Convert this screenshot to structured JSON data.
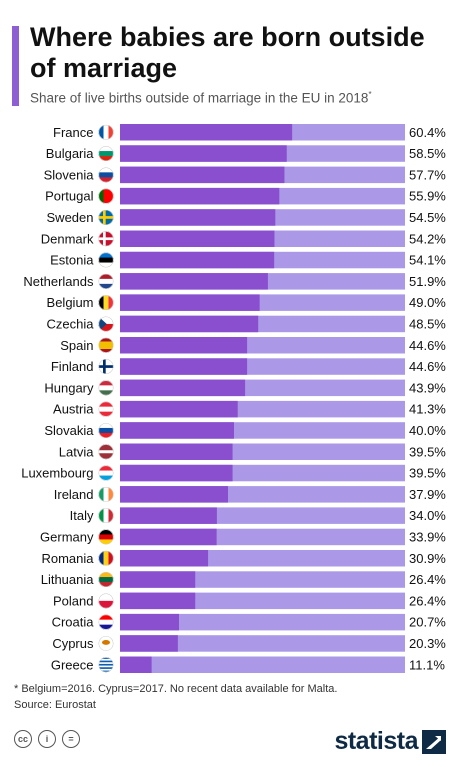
{
  "header": {
    "title": "Where babies are born outside of marriage",
    "subtitle": "Share of live births outside of marriage in the EU in 2018",
    "subtitle_mark": "*"
  },
  "colors": {
    "accent": "#8d5fd3",
    "bar_fill": "#8a4fcf",
    "bar_track": "#ab99e8",
    "brand": "#0f2a44"
  },
  "chart_data": {
    "type": "bar",
    "orientation": "horizontal",
    "xlim": [
      0,
      100
    ],
    "categories": [
      "France",
      "Bulgaria",
      "Slovenia",
      "Portugal",
      "Sweden",
      "Denmark",
      "Estonia",
      "Netherlands",
      "Belgium",
      "Czechia",
      "Spain",
      "Finland",
      "Hungary",
      "Austria",
      "Slovakia",
      "Latvia",
      "Luxembourg",
      "Ireland",
      "Italy",
      "Germany",
      "Romania",
      "Lithuania",
      "Poland",
      "Croatia",
      "Cyprus",
      "Greece"
    ],
    "values": [
      60.4,
      58.5,
      57.7,
      55.9,
      54.5,
      54.2,
      54.1,
      51.9,
      49.0,
      48.5,
      44.6,
      44.6,
      43.9,
      41.3,
      40.0,
      39.5,
      39.5,
      37.9,
      34.0,
      33.9,
      30.9,
      26.4,
      26.4,
      20.7,
      20.3,
      11.1
    ],
    "value_labels": [
      "60.4%",
      "58.5%",
      "57.7%",
      "55.9%",
      "54.5%",
      "54.2%",
      "54.1%",
      "51.9%",
      "49.0%",
      "48.5%",
      "44.6%",
      "44.6%",
      "43.9%",
      "41.3%",
      "40.0%",
      "39.5%",
      "39.5%",
      "37.9%",
      "34.0%",
      "33.9%",
      "30.9%",
      "26.4%",
      "26.4%",
      "20.7%",
      "20.3%",
      "11.1%"
    ],
    "flag_icons": [
      "france-flag-icon",
      "bulgaria-flag-icon",
      "slovenia-flag-icon",
      "portugal-flag-icon",
      "sweden-flag-icon",
      "denmark-flag-icon",
      "estonia-flag-icon",
      "netherlands-flag-icon",
      "belgium-flag-icon",
      "czechia-flag-icon",
      "spain-flag-icon",
      "finland-flag-icon",
      "hungary-flag-icon",
      "austria-flag-icon",
      "slovakia-flag-icon",
      "latvia-flag-icon",
      "luxembourg-flag-icon",
      "ireland-flag-icon",
      "italy-flag-icon",
      "germany-flag-icon",
      "romania-flag-icon",
      "lithuania-flag-icon",
      "poland-flag-icon",
      "croatia-flag-icon",
      "cyprus-flag-icon",
      "greece-flag-icon"
    ]
  },
  "footer": {
    "footnote": "* Belgium=2016. Cyprus=2017. No recent data available for Malta.",
    "source": "Source: Eurostat",
    "license_icons": [
      "cc-icon",
      "by-icon",
      "nd-icon"
    ],
    "license_marks": [
      "cc",
      "i",
      "="
    ],
    "brand": "statista"
  }
}
